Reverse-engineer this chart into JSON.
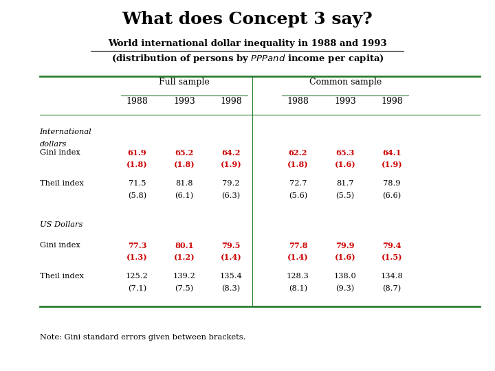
{
  "title": "What does Concept 3 say?",
  "subtitle_line1": "World international dollar inequality in 1988 and 1993",
  "subtitle_line2": "(distribution of persons by $PPP and $ income per capita)",
  "note": "Note: Gini standard errors given between brackets.",
  "col_headers_top": [
    "Full sample",
    "Common sample"
  ],
  "col_headers_sub": [
    "1988",
    "1993",
    "1998",
    "1988",
    "1993",
    "1998"
  ],
  "row_sections": [
    {
      "section_label_line1": "International",
      "section_label_line2": "dollars",
      "rows": [
        {
          "label": "Gini index",
          "values": [
            "61.9",
            "65.2",
            "64.2",
            "62.2",
            "65.3",
            "64.1"
          ],
          "errors": [
            "(1.8)",
            "(1.8)",
            "(1.9)",
            "(1.8)",
            "(1.6)",
            "(1.9)"
          ],
          "red": [
            true,
            true,
            true,
            true,
            true,
            true
          ]
        },
        {
          "label": "Theil index",
          "values": [
            "71.5",
            "81.8",
            "79.2",
            "72.7",
            "81.7",
            "78.9"
          ],
          "errors": [
            "(5.8)",
            "(6.1)",
            "(6.3)",
            "(5.6)",
            "(5.5)",
            "(6.6)"
          ],
          "red": [
            false,
            false,
            false,
            false,
            false,
            false
          ]
        }
      ]
    },
    {
      "section_label_line1": "US Dollars",
      "section_label_line2": "",
      "rows": [
        {
          "label": "Gini index",
          "values": [
            "77.3",
            "80.1",
            "79.5",
            "77.8",
            "79.9",
            "79.4"
          ],
          "errors": [
            "(1.3)",
            "(1.2)",
            "(1.4)",
            "(1.4)",
            "(1.6)",
            "(1.5)"
          ],
          "red": [
            true,
            true,
            true,
            true,
            true,
            true
          ]
        },
        {
          "label": "Theil index",
          "values": [
            "125.2",
            "139.2",
            "135.4",
            "128.3",
            "138.0",
            "134.8"
          ],
          "errors": [
            "(7.1)",
            "(7.5)",
            "(8.3)",
            "(8.1)",
            "(9.3)",
            "(8.7)"
          ],
          "red": [
            false,
            false,
            false,
            false,
            false,
            false
          ]
        }
      ]
    }
  ],
  "background_color": "#ffffff",
  "line_color": "#2e7d32",
  "red_color": "#cc0000",
  "black_color": "#000000"
}
